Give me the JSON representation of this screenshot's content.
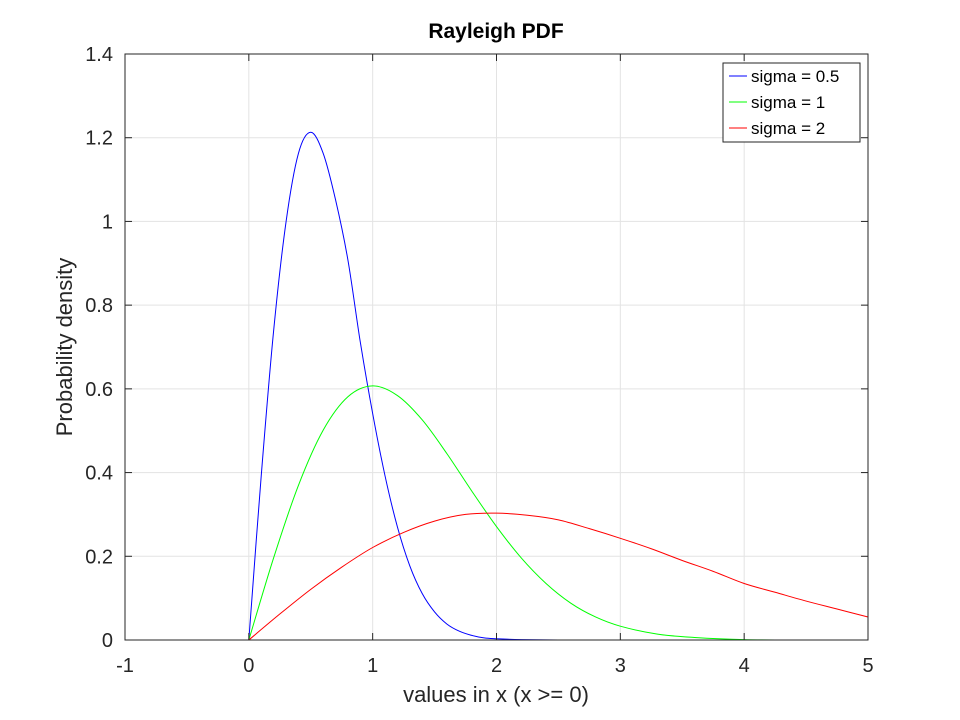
{
  "chart_data": {
    "type": "line",
    "title": "Rayleigh PDF",
    "xlabel": "values in x (x >= 0)",
    "ylabel": "Probability density",
    "xlim": [
      -1,
      5
    ],
    "ylim": [
      0,
      1.4
    ],
    "xticks": [
      -1,
      0,
      1,
      2,
      3,
      4,
      5
    ],
    "xtick_labels": [
      "-1",
      "0",
      "1",
      "2",
      "3",
      "4",
      "5"
    ],
    "yticks": [
      0,
      0.2,
      0.4,
      0.6,
      0.8,
      1,
      1.2,
      1.4
    ],
    "ytick_labels": [
      "0",
      "0.2",
      "0.4",
      "0.6",
      "0.8",
      "1",
      "1.2",
      "1.4"
    ],
    "grid": true,
    "legend_position": "top-right",
    "series": [
      {
        "name": "sigma = 0.5",
        "color": "#0000ff",
        "x": [
          -1,
          0,
          0.1,
          0.2,
          0.3,
          0.4,
          0.5,
          0.6,
          0.7,
          0.8,
          0.9,
          1.0,
          1.1,
          1.2,
          1.3,
          1.4,
          1.5,
          1.6,
          1.7,
          1.8,
          1.9,
          2.0,
          2.2,
          2.5,
          3.0,
          3.9
        ],
        "y": [
          0,
          0,
          0.392,
          0.738,
          0.998,
          1.162,
          1.213,
          1.163,
          1.052,
          0.908,
          0.712,
          0.541,
          0.392,
          0.27,
          0.177,
          0.111,
          0.067,
          0.038,
          0.021,
          0.011,
          0.005,
          0.003,
          0.001,
          0.0,
          0.0,
          0.0
        ]
      },
      {
        "name": "sigma = 1",
        "color": "#00ff00",
        "x": [
          -1,
          0,
          0.2,
          0.4,
          0.6,
          0.8,
          1.0,
          1.2,
          1.4,
          1.6,
          1.8,
          2.0,
          2.2,
          2.4,
          2.6,
          2.8,
          3.0,
          3.3,
          3.6,
          4.0,
          4.5,
          5.0
        ],
        "y": [
          0,
          0,
          0.196,
          0.369,
          0.501,
          0.581,
          0.607,
          0.584,
          0.526,
          0.445,
          0.356,
          0.271,
          0.196,
          0.135,
          0.088,
          0.055,
          0.033,
          0.014,
          0.006,
          0.001,
          0.0,
          0.0
        ]
      },
      {
        "name": "sigma = 2",
        "color": "#ff0000",
        "x": [
          -1,
          0,
          0.25,
          0.5,
          0.75,
          1.0,
          1.25,
          1.5,
          1.75,
          2.0,
          2.25,
          2.5,
          2.75,
          3.0,
          3.25,
          3.5,
          3.75,
          4.0,
          4.25,
          4.5,
          4.75,
          5.0
        ],
        "y": [
          0,
          0,
          0.062,
          0.121,
          0.174,
          0.221,
          0.257,
          0.284,
          0.3,
          0.303,
          0.298,
          0.287,
          0.266,
          0.243,
          0.218,
          0.19,
          0.164,
          0.135,
          0.114,
          0.093,
          0.074,
          0.055
        ]
      }
    ]
  }
}
